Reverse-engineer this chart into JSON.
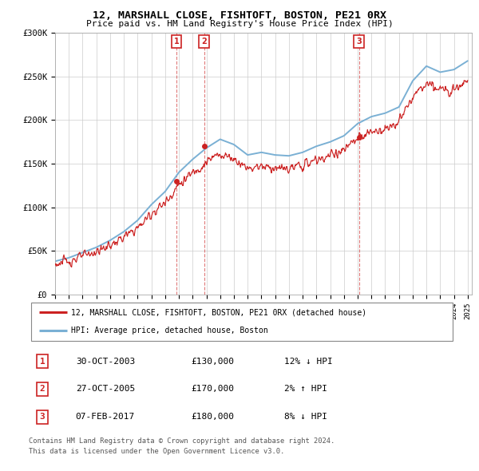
{
  "title": "12, MARSHALL CLOSE, FISHTOFT, BOSTON, PE21 0RX",
  "subtitle": "Price paid vs. HM Land Registry's House Price Index (HPI)",
  "legend_line1": "12, MARSHALL CLOSE, FISHTOFT, BOSTON, PE21 0RX (detached house)",
  "legend_line2": "HPI: Average price, detached house, Boston",
  "footer1": "Contains HM Land Registry data © Crown copyright and database right 2024.",
  "footer2": "This data is licensed under the Open Government Licence v3.0.",
  "transactions": [
    {
      "num": 1,
      "date": "30-OCT-2003",
      "price": "£130,000",
      "hpi_change": "12% ↓ HPI"
    },
    {
      "num": 2,
      "date": "27-OCT-2005",
      "price": "£170,000",
      "hpi_change": "2% ↑ HPI"
    },
    {
      "num": 3,
      "date": "07-FEB-2017",
      "price": "£180,000",
      "hpi_change": "8% ↓ HPI"
    }
  ],
  "transaction_years": [
    2003.83,
    2005.83,
    2017.09
  ],
  "transaction_prices": [
    130000,
    170000,
    180000
  ],
  "ylim": [
    0,
    300000
  ],
  "yticks": [
    0,
    50000,
    100000,
    150000,
    200000,
    250000,
    300000
  ],
  "ytick_labels": [
    "£0",
    "£50K",
    "£100K",
    "£150K",
    "£200K",
    "£250K",
    "£300K"
  ],
  "hpi_color": "#7ab0d4",
  "price_color": "#cc2222",
  "marker_box_color": "#cc2222",
  "background_color": "#ffffff",
  "grid_color": "#cccccc",
  "hpi_years": [
    1995,
    1996,
    1997,
    1998,
    1999,
    2000,
    2001,
    2002,
    2003,
    2004,
    2005,
    2006,
    2007,
    2008,
    2009,
    2010,
    2011,
    2012,
    2013,
    2014,
    2015,
    2016,
    2017,
    2018,
    2019,
    2020,
    2021,
    2022,
    2023,
    2024,
    2025
  ],
  "hpi_values": [
    38000,
    42000,
    48000,
    54000,
    62000,
    72000,
    85000,
    103000,
    118000,
    140000,
    155000,
    168000,
    178000,
    172000,
    160000,
    163000,
    160000,
    159000,
    163000,
    170000,
    175000,
    182000,
    196000,
    204000,
    208000,
    215000,
    245000,
    262000,
    255000,
    258000,
    268000
  ]
}
